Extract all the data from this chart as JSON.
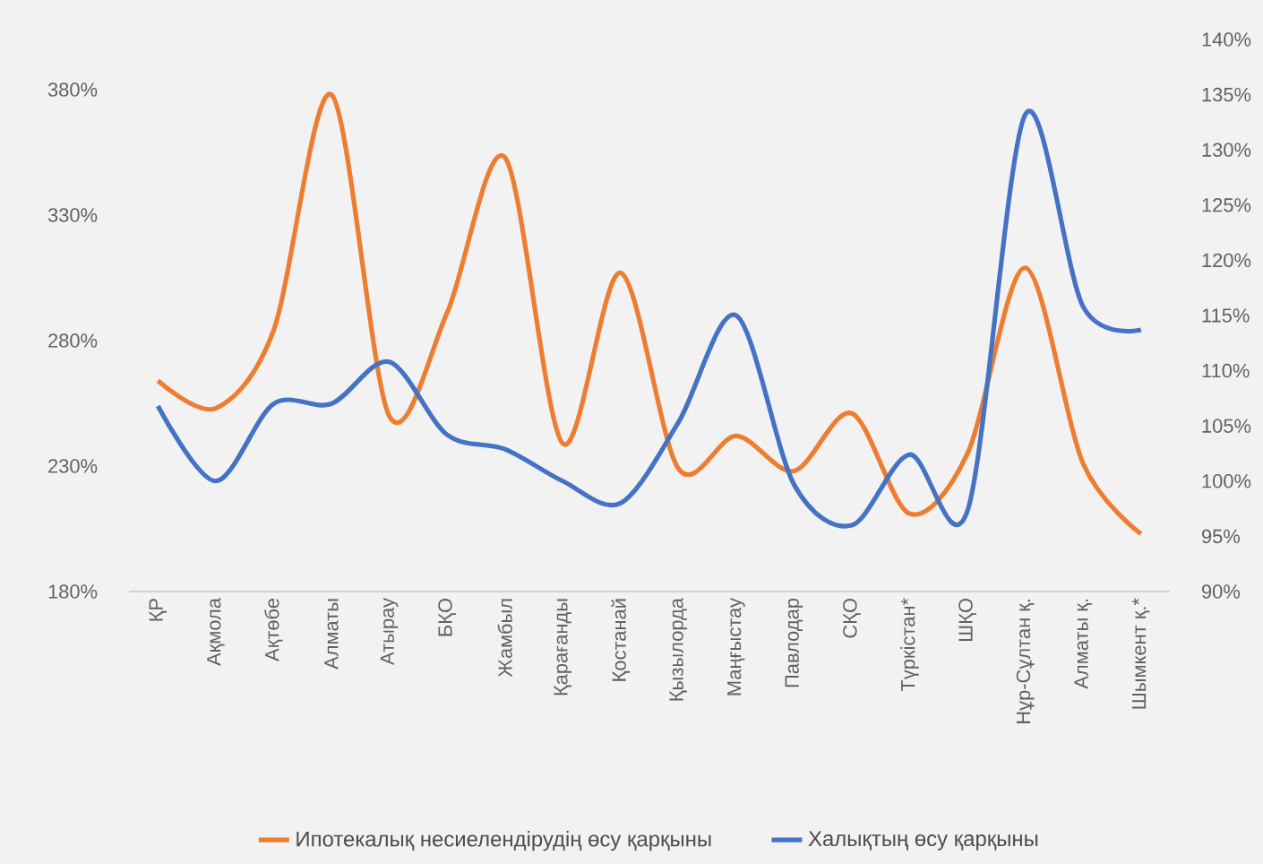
{
  "chart_data": {
    "type": "line",
    "categories": [
      "ҚР",
      "Ақмола",
      "Ақтөбе",
      "Алматы",
      "Атырау",
      "БҚО",
      "Жамбыл",
      "Қарағанды",
      "Қостанай",
      "Қызылорда",
      "Маңғыстау",
      "Павлодар",
      "СҚО",
      "Түркістан*",
      "ШҚО",
      "Нұр-Сұлтан қ.",
      "Алматы қ.",
      "Шымкент қ.*"
    ],
    "series": [
      {
        "name": "Ипотекалық несиелендірудің өсу қарқыны",
        "color": "#ed7d31",
        "values": [
          264,
          253,
          284,
          378,
          250,
          291,
          353,
          239,
          307,
          229,
          242,
          228,
          251,
          211,
          235,
          309,
          231,
          203
        ]
      },
      {
        "name": "Халықтың өсу қарқыны",
        "color": "#4472c4",
        "axis": "y2",
        "values": [
          106.8,
          100,
          107,
          107,
          110.8,
          104.2,
          102.9,
          100,
          98,
          105.3,
          115,
          99.7,
          96,
          102.4,
          97.3,
          133.2,
          115.8,
          113.7
        ]
      }
    ],
    "ylim": [
      180,
      380
    ],
    "yticks": [
      {
        "value": 180,
        "label": "180%"
      },
      {
        "value": 230,
        "label": "230%"
      },
      {
        "value": 280,
        "label": "280%"
      },
      {
        "value": 330,
        "label": "330%"
      },
      {
        "value": 380,
        "label": "380%"
      }
    ],
    "y2lim": [
      90,
      140
    ],
    "y2ticks": [
      {
        "value": 90,
        "label": "90%"
      },
      {
        "value": 95,
        "label": "95%"
      },
      {
        "value": 100,
        "label": "100%"
      },
      {
        "value": 105,
        "label": "105%"
      },
      {
        "value": 110,
        "label": "110%"
      },
      {
        "value": 115,
        "label": "115%"
      },
      {
        "value": 120,
        "label": "120%"
      },
      {
        "value": 125,
        "label": "125%"
      },
      {
        "value": 130,
        "label": "130%"
      },
      {
        "value": 135,
        "label": "135%"
      },
      {
        "value": 140,
        "label": "140%"
      }
    ],
    "legend": "bottom"
  }
}
